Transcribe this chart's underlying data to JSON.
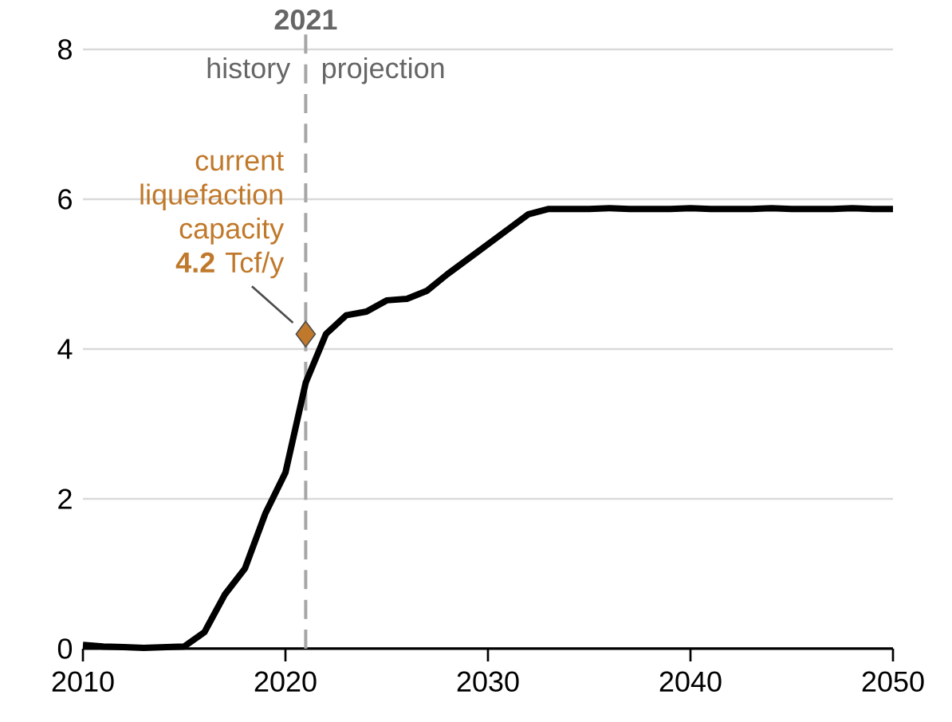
{
  "chart_data": {
    "type": "line",
    "x": [
      2010,
      2011,
      2012,
      2013,
      2014,
      2015,
      2016,
      2017,
      2018,
      2019,
      2020,
      2021,
      2022,
      2023,
      2024,
      2025,
      2026,
      2027,
      2028,
      2029,
      2030,
      2031,
      2032,
      2033,
      2034,
      2035,
      2036,
      2037,
      2038,
      2039,
      2040,
      2041,
      2042,
      2043,
      2044,
      2045,
      2046,
      2047,
      2048,
      2049,
      2050
    ],
    "series": [
      {
        "color": "#000000",
        "line_style": "solid",
        "marker": "none",
        "values": [
          0.05,
          0.03,
          0.02,
          0.01,
          0.02,
          0.03,
          0.22,
          0.72,
          1.07,
          1.8,
          2.35,
          3.55,
          4.2,
          4.45,
          4.5,
          4.65,
          4.67,
          4.78,
          5.0,
          5.2,
          5.4,
          5.6,
          5.8,
          5.87,
          5.87,
          5.87,
          5.88,
          5.87,
          5.87,
          5.87,
          5.88,
          5.87,
          5.87,
          5.87,
          5.88,
          5.87,
          5.87,
          5.87,
          5.88,
          5.87,
          5.87
        ]
      },
      {
        "type": "scatter",
        "marker": "diamond",
        "color": "#c0792b",
        "x": [
          2021
        ],
        "values": [
          4.2
        ]
      }
    ],
    "xlim": [
      2010,
      2050
    ],
    "xticks": [
      2010,
      2020,
      2030,
      2040,
      2050
    ],
    "ylim": [
      0,
      8
    ],
    "yticks": [
      0,
      2,
      4,
      6,
      8
    ],
    "grid": "y",
    "ref_lines": [
      {
        "axis": "x",
        "value": 2021,
        "label": "2021",
        "color": "#a6a6a6",
        "line_style": "dashed"
      }
    ],
    "annotations": [
      {
        "text": "current liquefaction capacity **4.2** Tcf/y",
        "x": 2021,
        "y": 4.2
      },
      "history",
      "projection"
    ]
  }
}
